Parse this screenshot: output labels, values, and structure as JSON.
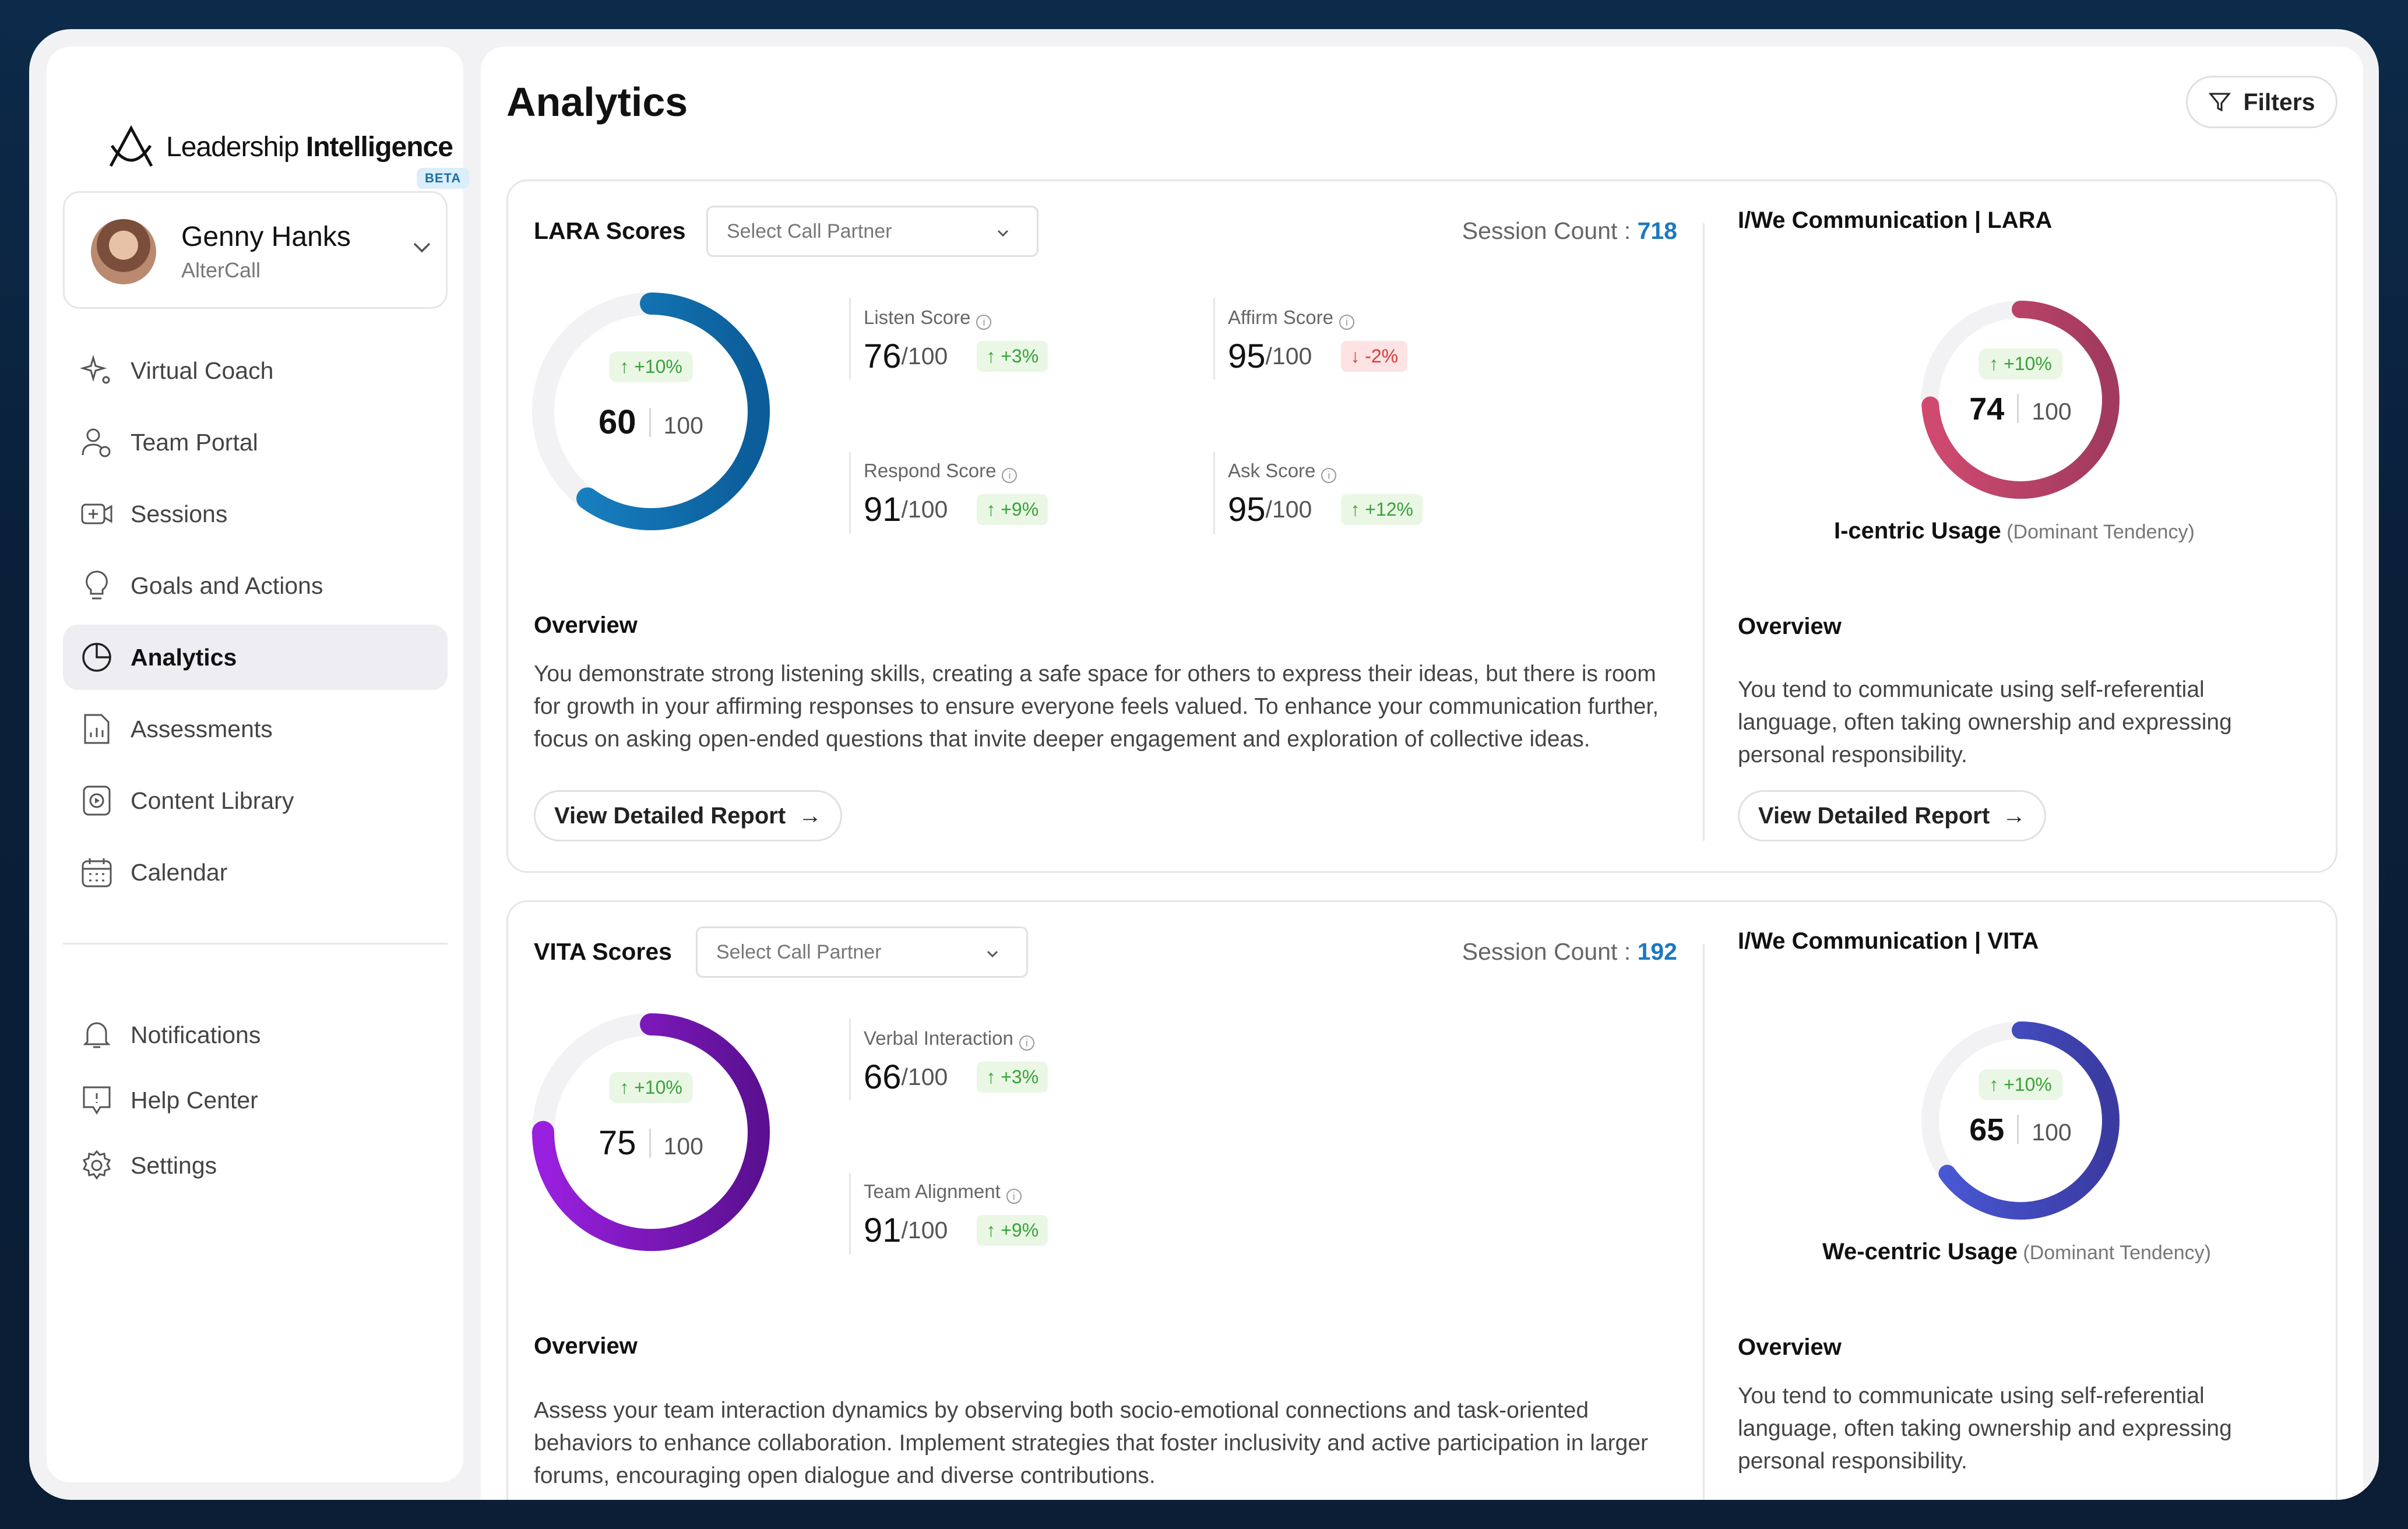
{
  "app": {
    "brand_light": "Leadership ",
    "brand_bold": "Intelligence",
    "beta": "BETA"
  },
  "profile": {
    "name": "Genny Hanks",
    "org": "AlterCall"
  },
  "nav": [
    {
      "label": "Virtual Coach",
      "icon": "sparkle-icon"
    },
    {
      "label": "Team Portal",
      "icon": "team-icon"
    },
    {
      "label": "Sessions",
      "icon": "video-add-icon"
    },
    {
      "label": "Goals and Actions",
      "icon": "lightbulb-icon"
    },
    {
      "label": "Analytics",
      "icon": "pie-chart-icon",
      "active": true
    },
    {
      "label": "Assessments",
      "icon": "report-icon"
    },
    {
      "label": "Content Library",
      "icon": "play-file-icon"
    },
    {
      "label": "Calendar",
      "icon": "calendar-icon"
    }
  ],
  "nav_bottom": [
    {
      "label": "Notifications",
      "icon": "bell-icon"
    },
    {
      "label": "Help Center",
      "icon": "help-icon"
    },
    {
      "label": "Settings",
      "icon": "gear-icon"
    }
  ],
  "page": {
    "title": "Analytics",
    "filters_label": "Filters"
  },
  "lara": {
    "title": "LARA Scores",
    "select_placeholder": "Select Call Partner",
    "session_label": "Session Count : ",
    "session_count": "718",
    "gauge": {
      "value": "60",
      "max": "100",
      "change": "+10%",
      "fraction": 0.6,
      "color_start": "#1a86c8",
      "color_end": "#0b5c98"
    },
    "metrics": [
      {
        "label": "Listen Score",
        "value": "76",
        "max": "/100",
        "change": "+3%",
        "direction": "up"
      },
      {
        "label": "Affirm Score",
        "value": "95",
        "max": "/100",
        "change": "-2%",
        "direction": "down"
      },
      {
        "label": "Respond Score",
        "value": "91",
        "max": "/100",
        "change": "+9%",
        "direction": "up"
      },
      {
        "label": "Ask Score",
        "value": "95",
        "max": "/100",
        "change": "+12%",
        "direction": "up"
      }
    ],
    "overview_title": "Overview",
    "overview_text": "You demonstrate strong listening skills, creating a safe space for others to express their ideas, but there is room for growth in your affirming responses to ensure everyone feels valued. To enhance your communication further, focus on asking open-ended questions that invite deeper engagement and exploration of collective ideas.",
    "button": "View Detailed Report"
  },
  "lara_iwe": {
    "title": "I/We Communication | LARA",
    "gauge": {
      "value": "74",
      "max": "100",
      "change": "+10%",
      "fraction": 0.74,
      "color_start": "#d04a70",
      "color_end": "#a03a5e"
    },
    "usage_bold": "I-centric Usage",
    "usage_light": " (Dominant Tendency)",
    "overview_title": "Overview",
    "overview_text": "You tend to communicate using self-referential language, often taking ownership and expressing personal responsibility.",
    "button": "View Detailed Report"
  },
  "vita": {
    "title": "VITA Scores",
    "select_placeholder": "Select Call Partner",
    "session_label": "Session Count : ",
    "session_count": "192",
    "gauge": {
      "value": "75",
      "max": "100",
      "change": "+10%",
      "fraction": 0.75,
      "color_start": "#9a20e0",
      "color_end": "#5a1090"
    },
    "metrics": [
      {
        "label": "Verbal Interaction",
        "value": "66",
        "max": "/100",
        "change": "+3%",
        "direction": "up"
      },
      {
        "label": "Team Alignment",
        "value": "91",
        "max": "/100",
        "change": "+9%",
        "direction": "up"
      }
    ],
    "overview_title": "Overview",
    "overview_text": "Assess your team interaction dynamics by observing both socio-emotional connections and task-oriented behaviors to enhance collaboration. Implement strategies that foster inclusivity and active participation in larger forums, encouraging open dialogue and diverse contributions."
  },
  "vita_iwe": {
    "title": "I/We Communication | VITA",
    "gauge": {
      "value": "65",
      "max": "100",
      "change": "+10%",
      "fraction": 0.65,
      "color_start": "#4a5ad8",
      "color_end": "#3a3aa0"
    },
    "usage_bold": "We-centric Usage",
    "usage_light": " (Dominant Tendency)",
    "overview_title": "Overview",
    "overview_text": "You tend to communicate using self-referential language, often taking ownership and expressing personal responsibility."
  }
}
